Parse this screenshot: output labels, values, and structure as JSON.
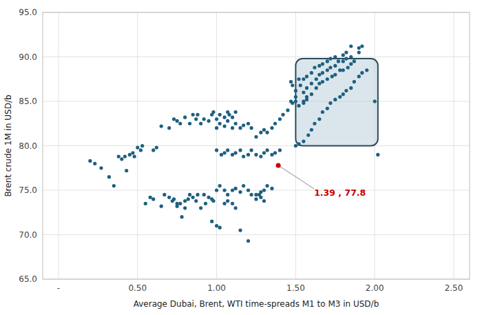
{
  "chart_data": {
    "type": "scatter",
    "x_label": "Average Dubai, Brent, WTI time-spreads M1 to M3 in USD/b",
    "y_label": "Brent crude 1M in USD/b",
    "x": [
      0.2,
      0.23,
      0.27,
      0.32,
      0.35,
      0.38,
      0.4,
      0.42,
      0.43,
      0.45,
      0.47,
      0.48,
      0.5,
      0.52,
      0.53,
      0.6,
      0.62,
      0.55,
      0.58,
      0.6,
      0.65,
      0.67,
      0.7,
      0.72,
      0.73,
      0.75,
      0.77,
      0.78,
      0.8,
      0.82,
      0.83,
      0.85,
      0.87,
      0.88,
      0.9,
      0.92,
      0.93,
      0.95,
      0.97,
      0.98,
      0.65,
      0.7,
      0.73,
      0.75,
      0.77,
      0.8,
      0.83,
      0.85,
      0.87,
      0.88,
      0.9,
      0.92,
      0.95,
      0.97,
      0.98,
      1.0,
      1.02,
      1.05,
      1.07,
      1.08,
      1.1,
      1.12,
      1.0,
      1.02,
      1.05,
      1.07,
      1.1,
      1.12,
      1.15,
      1.17,
      1.2,
      1.22,
      0.75,
      0.8,
      1.0,
      1.03,
      1.05,
      1.07,
      1.1,
      1.12,
      1.15,
      1.17,
      1.2,
      1.22,
      1.0,
      1.02,
      1.05,
      1.07,
      1.1,
      1.12,
      1.15,
      1.17,
      1.2,
      1.05,
      1.07,
      1.1,
      1.12,
      1.15,
      1.2,
      1.0,
      1.02,
      0.97,
      1.25,
      1.28,
      1.3,
      1.22,
      1.25,
      1.27,
      1.3,
      1.28,
      1.32,
      1.35,
      1.25,
      1.28,
      1.3,
      1.32,
      1.35,
      1.37,
      1.4,
      1.25,
      1.28,
      1.3,
      1.32,
      1.35,
      1.37,
      1.4,
      1.42,
      1.45,
      1.47,
      1.48,
      1.5,
      1.47,
      1.48,
      1.5,
      1.5,
      1.52,
      1.53,
      1.55,
      1.55,
      1.55,
      1.57,
      1.57,
      1.57,
      1.6,
      1.6,
      1.6,
      1.62,
      1.63,
      1.63,
      1.65,
      1.65,
      1.65,
      1.67,
      1.67,
      1.67,
      1.7,
      1.7,
      1.7,
      1.72,
      1.72,
      1.73,
      1.75,
      1.75,
      1.75,
      1.77,
      1.78,
      1.8,
      1.8,
      1.8,
      1.82,
      1.82,
      1.83,
      1.85,
      1.85,
      1.85,
      1.87,
      1.9,
      1.5,
      1.52,
      1.55,
      1.58,
      1.6,
      1.62,
      1.65,
      1.67,
      1.7,
      1.72,
      1.75,
      1.78,
      1.8,
      1.82,
      1.85,
      1.87,
      1.9,
      1.92,
      1.95,
      2.0,
      2.02,
      1.52,
      1.55,
      1.57,
      1.92,
      1.9
    ],
    "values": [
      78.3,
      78.0,
      77.5,
      76.5,
      75.5,
      78.8,
      78.5,
      78.8,
      77.2,
      79.0,
      79.2,
      78.8,
      79.8,
      79.5,
      80.0,
      79.5,
      79.8,
      73.5,
      74.2,
      74.0,
      73.2,
      74.5,
      74.2,
      73.8,
      74.0,
      73.2,
      73.5,
      72.0,
      73.8,
      74.0,
      74.5,
      74.2,
      73.8,
      74.5,
      73.0,
      74.5,
      73.5,
      74.2,
      74.0,
      73.8,
      82.2,
      82.0,
      83.0,
      82.8,
      82.5,
      83.2,
      82.5,
      83.5,
      83.0,
      83.5,
      82.5,
      83.0,
      82.8,
      83.5,
      83.8,
      83.0,
      83.5,
      83.2,
      83.8,
      83.5,
      83.2,
      83.8,
      82.0,
      82.5,
      82.2,
      82.8,
      82.0,
      82.5,
      82.0,
      82.3,
      82.5,
      82.0,
      73.5,
      73.0,
      79.5,
      79.0,
      79.2,
      79.5,
      79.0,
      79.2,
      79.5,
      78.8,
      79.0,
      79.5,
      75.0,
      75.5,
      75.0,
      74.5,
      75.0,
      75.2,
      74.8,
      75.5,
      75.0,
      73.5,
      73.8,
      73.5,
      73.0,
      70.5,
      69.3,
      71.0,
      70.8,
      71.5,
      74.5,
      74.2,
      73.8,
      74.5,
      74.0,
      74.5,
      75.0,
      74.8,
      75.5,
      75.2,
      79.0,
      78.8,
      79.2,
      79.5,
      79.0,
      79.2,
      79.5,
      81.0,
      81.5,
      81.8,
      81.5,
      82.0,
      82.5,
      83.0,
      83.5,
      84.0,
      85.0,
      84.8,
      85.5,
      87.2,
      86.8,
      86.2,
      85.0,
      87.5,
      86.8,
      87.5,
      86.0,
      84.8,
      87.8,
      86.5,
      85.2,
      88.2,
      87.0,
      85.8,
      88.8,
      87.5,
      86.5,
      89.0,
      88.0,
      87.0,
      89.2,
      88.2,
      87.2,
      89.5,
      88.5,
      87.5,
      89.8,
      88.8,
      87.8,
      90.0,
      89.0,
      88.0,
      89.5,
      88.5,
      90.2,
      89.5,
      88.5,
      90.5,
      89.8,
      88.8,
      91.2,
      90.0,
      89.2,
      89.5,
      90.5,
      80.0,
      80.2,
      80.5,
      81.2,
      81.8,
      82.5,
      83.0,
      83.8,
      84.2,
      84.8,
      85.2,
      85.5,
      85.8,
      86.2,
      86.5,
      87.2,
      87.8,
      88.2,
      88.5,
      85.0,
      79.0,
      84.5,
      85.0,
      85.5,
      91.2,
      91.0
    ],
    "color": "#1e6080",
    "marker": "circle",
    "highlight": {
      "x": 1.39,
      "y": 77.8,
      "color": "#cc0000",
      "label": "1.39 , 77.8"
    },
    "box": {
      "x": 1.5,
      "y": 80.0,
      "width": 0.52,
      "height": 9.8,
      "color": "#b0c8d4"
    },
    "xlim": [
      -0.1,
      2.6
    ],
    "ylim": [
      65.0,
      95.0
    ],
    "xticks": [
      {
        "value": 0.0,
        "label": "-"
      },
      {
        "value": 0.5,
        "label": "0.50"
      },
      {
        "value": 1.0,
        "label": "1.00"
      },
      {
        "value": 1.5,
        "label": "1.50"
      },
      {
        "value": 2.0,
        "label": "2.00"
      },
      {
        "value": 2.5,
        "label": "2.50"
      }
    ],
    "yticks": [
      {
        "value": 65.0,
        "label": "65.0"
      },
      {
        "value": 70.0,
        "label": "70.0"
      },
      {
        "value": 75.0,
        "label": "75.0"
      },
      {
        "value": 80.0,
        "label": "80.0"
      },
      {
        "value": 85.0,
        "label": "85.0"
      },
      {
        "value": 90.0,
        "label": "90.0"
      },
      {
        "value": 95.0,
        "label": "95.0"
      }
    ],
    "grid": true
  }
}
